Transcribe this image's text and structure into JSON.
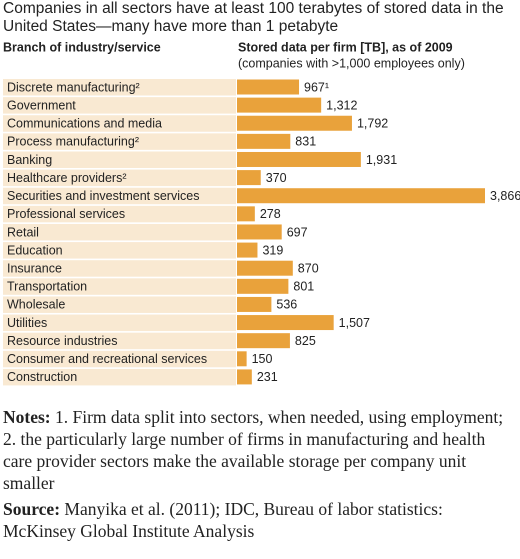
{
  "chart_data": {
    "type": "bar",
    "title": "Companies in all sectors have at least 100 terabytes of stored data in the United States—many have more than 1 petabyte",
    "category_header": "Branch of industry/service",
    "value_header": "Stored data per firm [TB], as of 2009",
    "subtitle": "(companies with >1,000 employees only)",
    "categories": [
      "Discrete manufacturing²",
      "Government",
      "Communications and media",
      "Process manufacturing²",
      "Banking",
      "Healthcare providers²",
      "Securities and investment services",
      "Professional services",
      "Retail",
      "Education",
      "Insurance",
      "Transportation",
      "Wholesale",
      "Utilities",
      "Resource industries",
      "Consumer and recreational services",
      "Construction"
    ],
    "values": [
      967,
      1312,
      1792,
      831,
      1931,
      370,
      3866,
      278,
      697,
      319,
      870,
      801,
      536,
      1507,
      825,
      150,
      231
    ],
    "value_labels": [
      "967¹",
      "1,312",
      "1,792",
      "831",
      "1,931",
      "370",
      "3,866",
      "278",
      "697",
      "319",
      "870",
      "801",
      "536",
      "1,507",
      "825",
      "150",
      "231"
    ],
    "color": "#e9a23b",
    "label_background": "#f9e9d2",
    "notes": {
      "label": "Notes:",
      "text": " 1. Firm data split into sectors, when needed, using employment; 2. the particularly large number of firms in manufacturing and health care provider sectors make the available storage per company unit smaller"
    },
    "source": {
      "label": "Source:",
      "text": " Manyika et al. (2011); IDC, Bureau of labor statistics: McKinsey Global Institute Analysis"
    }
  }
}
